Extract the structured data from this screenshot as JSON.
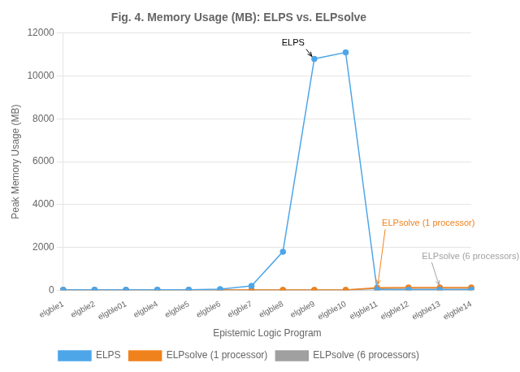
{
  "chart_data": {
    "type": "line",
    "title": "Fig. 4. Memory Usage (MB): ELPS vs. ELPsolve",
    "x_label": "Epistemic Logic Program",
    "y_label": "Peak Memory Usage (MB)",
    "categories": [
      "elgble1",
      "elgble2",
      "elgble01",
      "elgble4",
      "elgble5",
      "elgble6",
      "elgble7",
      "elgble8",
      "elgble9",
      "elgble10",
      "elgble11",
      "elgble12",
      "elgble13",
      "elgble14"
    ],
    "series": [
      {
        "name": "ELPS",
        "color": "#4da6e8",
        "marker": "circle",
        "values": [
          20,
          20,
          20,
          20,
          25,
          50,
          200,
          1800,
          10800,
          11100,
          20,
          20,
          20,
          20
        ]
      },
      {
        "name": "ELPsolve (1 processor)",
        "color": "#f0821e",
        "marker": "circle",
        "values": [
          10,
          10,
          10,
          10,
          10,
          10,
          10,
          10,
          10,
          10,
          120,
          130,
          130,
          130
        ]
      },
      {
        "name": "ELPsolve (6 processors)",
        "color": "#a0a0a0",
        "marker": "circle",
        "values": [
          10,
          10,
          10,
          10,
          10,
          10,
          10,
          10,
          10,
          10,
          80,
          90,
          90,
          90
        ]
      }
    ],
    "ylim": [
      0,
      12000
    ],
    "yticks": [
      0,
      2000,
      4000,
      6000,
      8000,
      10000,
      12000
    ],
    "grid": "y",
    "legend": "bottom",
    "annotations": [
      {
        "text": "ELPS",
        "x": "elgble9",
        "y": 10800,
        "color": "#000000"
      },
      {
        "text": "ELPsolve (1 processor)",
        "x": "elgble11",
        "y": 120,
        "color": "#f0821e"
      },
      {
        "text": "ELPsolve (6 processors)",
        "x": "elgble13",
        "y": 90,
        "color": "#a0a0a0"
      }
    ]
  }
}
